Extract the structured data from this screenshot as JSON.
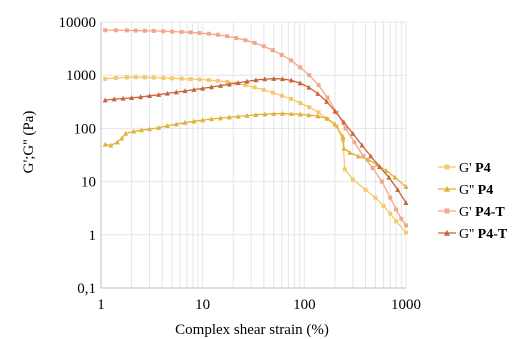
{
  "chart_data": {
    "type": "line",
    "xlabel": "Complex shear strain (%)",
    "ylabel": "G';G'' (Pa)",
    "x_scale": "log",
    "y_scale": "log",
    "xlim": [
      1,
      1000
    ],
    "ylim": [
      0.1,
      10000
    ],
    "x_ticks": [
      "1",
      "10",
      "100",
      "1000"
    ],
    "y_ticks": [
      "0,1",
      "1",
      "10",
      "100",
      "1000",
      "10000"
    ],
    "grid": true,
    "legend_position": "right",
    "series": [
      {
        "name": "G' P4",
        "name_prefix": "G'",
        "name_sample": "P4",
        "color": "#f5c96a",
        "marker": "square",
        "points": [
          [
            1.1,
            850
          ],
          [
            1.4,
            890
          ],
          [
            1.8,
            910
          ],
          [
            2.2,
            915
          ],
          [
            2.7,
            910
          ],
          [
            3.3,
            900
          ],
          [
            4.1,
            890
          ],
          [
            5,
            875
          ],
          [
            6.2,
            860
          ],
          [
            7.6,
            845
          ],
          [
            9.3,
            830
          ],
          [
            11.5,
            810
          ],
          [
            14.1,
            785
          ],
          [
            17.4,
            750
          ],
          [
            21.4,
            700
          ],
          [
            26.3,
            650
          ],
          [
            32.4,
            590
          ],
          [
            39.9,
            530
          ],
          [
            49,
            470
          ],
          [
            60,
            410
          ],
          [
            74,
            360
          ],
          [
            91,
            300
          ],
          [
            112,
            250
          ],
          [
            138,
            200
          ],
          [
            169,
            150
          ],
          [
            208,
            110
          ],
          [
            240,
            60
          ],
          [
            250,
            17
          ],
          [
            300,
            11
          ],
          [
            400,
            7
          ],
          [
            500,
            5
          ],
          [
            600,
            3.5
          ],
          [
            700,
            2.5
          ],
          [
            800,
            1.8
          ],
          [
            1000,
            1.1
          ]
        ]
      },
      {
        "name": "G'' P4",
        "name_prefix": "G''",
        "name_sample": "P4",
        "color": "#e0b23a",
        "marker": "triangle",
        "points": [
          [
            1.1,
            50
          ],
          [
            1.25,
            48
          ],
          [
            1.45,
            55
          ],
          [
            1.6,
            65
          ],
          [
            1.75,
            80
          ],
          [
            2.1,
            88
          ],
          [
            2.5,
            93
          ],
          [
            3,
            97
          ],
          [
            3.7,
            103
          ],
          [
            4.5,
            112
          ],
          [
            5.5,
            120
          ],
          [
            6.7,
            128
          ],
          [
            8.2,
            136
          ],
          [
            10,
            143
          ],
          [
            12.2,
            150
          ],
          [
            15,
            156
          ],
          [
            18.3,
            162
          ],
          [
            22.4,
            168
          ],
          [
            27.3,
            174
          ],
          [
            33.4,
            180
          ],
          [
            40.8,
            185
          ],
          [
            50,
            189
          ],
          [
            61,
            190
          ],
          [
            74.5,
            188
          ],
          [
            91,
            184
          ],
          [
            111,
            178
          ],
          [
            136,
            170
          ],
          [
            166,
            155
          ],
          [
            200,
            120
          ],
          [
            240,
            70
          ],
          [
            245,
            42
          ],
          [
            280,
            35
          ],
          [
            340,
            30
          ],
          [
            420,
            26
          ],
          [
            520,
            21
          ],
          [
            640,
            16
          ],
          [
            780,
            12
          ],
          [
            1000,
            8
          ]
        ]
      },
      {
        "name": "G' P4-T",
        "name_prefix": "G'",
        "name_sample": "P4-T",
        "color": "#f2a78a",
        "marker": "square",
        "points": [
          [
            1.1,
            7000
          ],
          [
            1.4,
            7000
          ],
          [
            1.8,
            6950
          ],
          [
            2.2,
            6900
          ],
          [
            2.7,
            6850
          ],
          [
            3.3,
            6800
          ],
          [
            4.1,
            6700
          ],
          [
            5,
            6600
          ],
          [
            6.2,
            6500
          ],
          [
            7.6,
            6400
          ],
          [
            9.3,
            6200
          ],
          [
            11.5,
            6000
          ],
          [
            14.1,
            5750
          ],
          [
            17.4,
            5400
          ],
          [
            21.4,
            5000
          ],
          [
            26.3,
            4550
          ],
          [
            32.4,
            4050
          ],
          [
            39.9,
            3500
          ],
          [
            49,
            2950
          ],
          [
            60,
            2400
          ],
          [
            74,
            1900
          ],
          [
            91,
            1400
          ],
          [
            112,
            1000
          ],
          [
            138,
            650
          ],
          [
            169,
            380
          ],
          [
            208,
            200
          ],
          [
            255,
            100
          ],
          [
            310,
            55
          ],
          [
            380,
            30
          ],
          [
            470,
            18
          ],
          [
            580,
            10
          ],
          [
            700,
            5
          ],
          [
            800,
            3
          ],
          [
            900,
            2
          ],
          [
            1000,
            1.5
          ]
        ]
      },
      {
        "name": "G'' P4-T",
        "name_prefix": "G''",
        "name_sample": "P4-T",
        "color": "#c8643a",
        "marker": "triangle",
        "points": [
          [
            1.1,
            340
          ],
          [
            1.35,
            355
          ],
          [
            1.65,
            365
          ],
          [
            2,
            375
          ],
          [
            2.45,
            390
          ],
          [
            3,
            410
          ],
          [
            3.7,
            430
          ],
          [
            4.5,
            455
          ],
          [
            5.5,
            480
          ],
          [
            6.7,
            505
          ],
          [
            8.2,
            535
          ],
          [
            10,
            565
          ],
          [
            12.2,
            600
          ],
          [
            15,
            635
          ],
          [
            18.3,
            675
          ],
          [
            22.4,
            720
          ],
          [
            27.3,
            765
          ],
          [
            33.4,
            810
          ],
          [
            40.8,
            845
          ],
          [
            50,
            860
          ],
          [
            61,
            850
          ],
          [
            74.5,
            800
          ],
          [
            91,
            710
          ],
          [
            111,
            590
          ],
          [
            136,
            450
          ],
          [
            166,
            320
          ],
          [
            200,
            210
          ],
          [
            245,
            130
          ],
          [
            300,
            80
          ],
          [
            370,
            48
          ],
          [
            450,
            30
          ],
          [
            550,
            19
          ],
          [
            680,
            12
          ],
          [
            830,
            7
          ],
          [
            1000,
            4
          ]
        ]
      }
    ]
  }
}
